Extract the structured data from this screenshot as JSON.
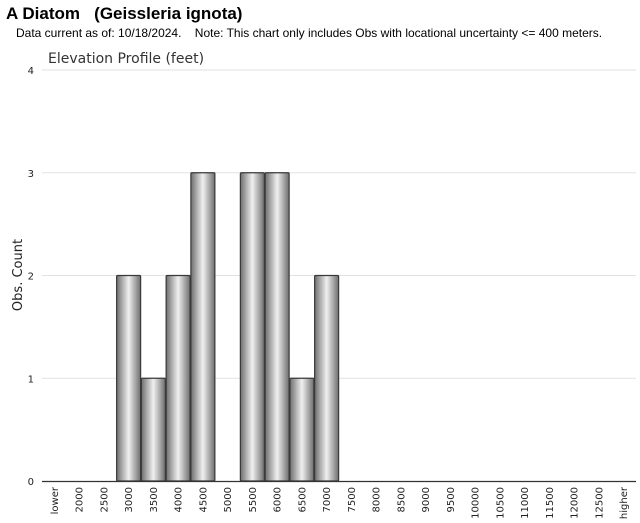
{
  "header": {
    "title": "A Diatom   (Geissleria ignota)",
    "subtitle": "Data current as of: 10/18/2024.    Note: This chart only includes Obs with locational uncertainty <= 400 meters."
  },
  "colors": {
    "bar_fill_dark": "#6e6e6e",
    "bar_fill_light": "#f0f0f0",
    "bar_stroke": "#3a3a3a",
    "gridline": "#e2e2e2",
    "axis": "#333333"
  },
  "chart_data": {
    "type": "bar",
    "title": "Elevation Profile (feet)",
    "xlabel": "",
    "ylabel": "Obs. Count",
    "ylim": [
      0,
      4
    ],
    "yticks": [
      0,
      1,
      2,
      3,
      4
    ],
    "grid": true,
    "categories": [
      "lower",
      "2000",
      "2500",
      "3000",
      "3500",
      "4000",
      "4500",
      "5000",
      "5500",
      "6000",
      "6500",
      "7000",
      "7500",
      "8000",
      "8500",
      "9000",
      "9500",
      "10000",
      "10500",
      "11000",
      "11500",
      "12000",
      "12500",
      "higher"
    ],
    "values": [
      0,
      0,
      0,
      2,
      1,
      2,
      3,
      0,
      3,
      3,
      1,
      2,
      0,
      0,
      0,
      0,
      0,
      0,
      0,
      0,
      0,
      0,
      0,
      0
    ]
  }
}
